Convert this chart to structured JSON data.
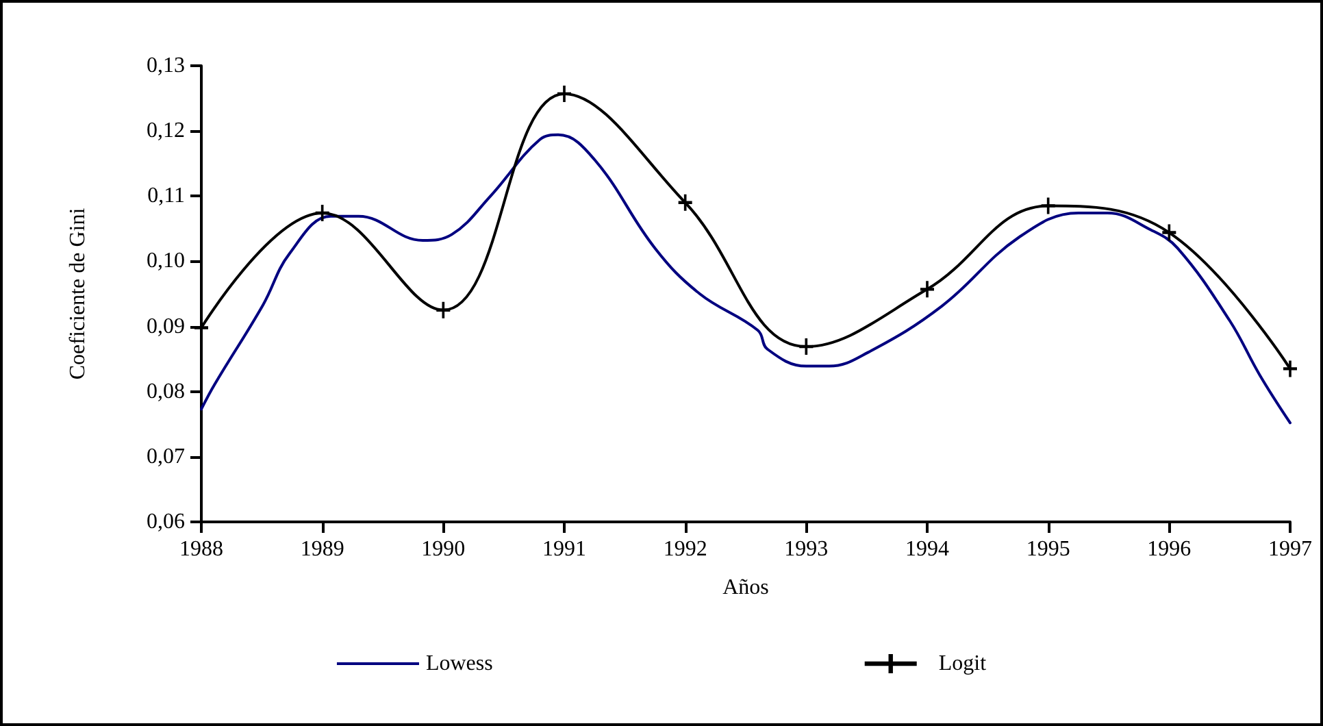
{
  "chart_data": {
    "type": "line",
    "xlabel": "Años",
    "ylabel": "Coeficiente de Gini",
    "xlim": [
      1988,
      1997
    ],
    "xticks": [
      1988,
      1989,
      1990,
      1991,
      1992,
      1993,
      1994,
      1995,
      1996,
      1997
    ],
    "ylim": [
      0.06,
      0.13
    ],
    "yticks": [
      {
        "value": 0.06,
        "label": "0,06"
      },
      {
        "value": 0.07,
        "label": "0,07"
      },
      {
        "value": 0.08,
        "label": "0,08"
      },
      {
        "value": 0.09,
        "label": "0,09"
      },
      {
        "value": 0.1,
        "label": "0,10"
      },
      {
        "value": 0.11,
        "label": "0,11"
      },
      {
        "value": 0.12,
        "label": "0,12"
      },
      {
        "value": 0.13,
        "label": "0,13"
      }
    ],
    "grid": false,
    "legend": "bottom",
    "series": [
      {
        "name": "Lowess",
        "color": "#000080",
        "marker": "none",
        "x": [
          1988,
          1988.11,
          1988.51,
          1988.73,
          1989.07,
          1989.3,
          1989.83,
          1990.07,
          1990.39,
          1990.8,
          1990.95,
          1991.25,
          1991.75,
          1992.12,
          1992.6,
          1992.68,
          1993.0,
          1993.19,
          1993.51,
          1994.12,
          1994.76,
          1995.25,
          1995.49,
          1995.85,
          1996.07,
          1996.5,
          1996.75,
          1997
        ],
        "values": [
          0.0773,
          0.0811,
          0.0933,
          0.1012,
          0.1069,
          0.1069,
          0.1032,
          0.1041,
          0.11,
          0.1187,
          0.1194,
          0.1156,
          0.102,
          0.095,
          0.0894,
          0.0865,
          0.0839,
          0.0839,
          0.086,
          0.0931,
          0.1037,
          0.1074,
          0.1074,
          0.1048,
          0.102,
          0.0909,
          0.0825,
          0.0752
        ]
      },
      {
        "name": "Logit",
        "color": "#000000",
        "marker": "cross",
        "x": [
          1988,
          1989,
          1990,
          1991,
          1992,
          1993,
          1994,
          1995,
          1996,
          1997
        ],
        "values": [
          0.0898,
          0.1074,
          0.0925,
          0.1257,
          0.109,
          0.0869,
          0.0957,
          0.1085,
          0.1044,
          0.0835
        ]
      }
    ]
  }
}
